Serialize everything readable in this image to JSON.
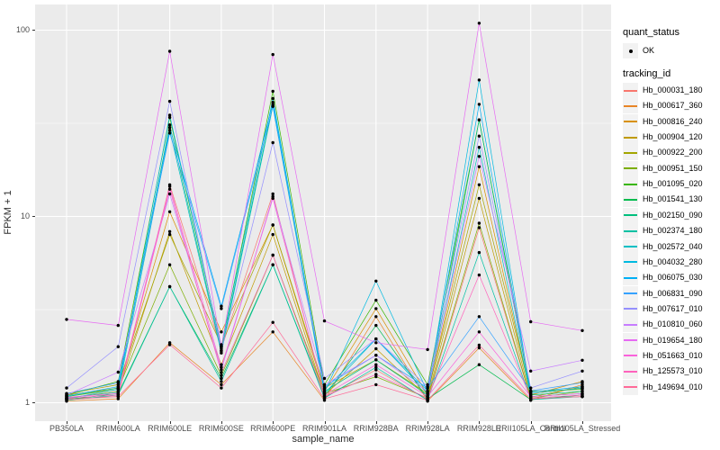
{
  "chart_data": {
    "type": "line",
    "title": "",
    "xlabel": "sample_name",
    "ylabel": "FPKM + 1",
    "y_scale": "log10",
    "y_tick_labels": [
      "1",
      "10",
      "100"
    ],
    "y_tick_values": [
      1,
      10,
      100
    ],
    "y_minor_gridlines": [
      3.1623,
      31.623
    ],
    "ylim": [
      0.8,
      137
    ],
    "grid": true,
    "legend_position": "right",
    "panel_bg": "#EBEBEB",
    "gridline_color": "#FFFFFF",
    "point_color": "#000000",
    "categories": [
      "PB350LA",
      "RRIM600LA",
      "RRIM600LE",
      "RRIM600SE",
      "RRIM600PE",
      "RRIM901LA",
      "RRIM928BA",
      "RRIM928LA",
      "RRIM928LE",
      "RRII105LA_Control",
      "RRII105LA_Stressed"
    ],
    "quant_status_legend": {
      "title": "quant_status",
      "items": [
        {
          "label": "OK",
          "marker": "point",
          "color": "#000000"
        }
      ]
    },
    "tracking_id_legend_title": "tracking_id",
    "series": [
      {
        "name": "Hb_000031_180",
        "color": "#F8766D",
        "values": [
          1.05,
          1.08,
          14.8,
          1.95,
          13.2,
          1.08,
          1.5,
          1.04,
          8.7,
          1.05,
          1.08
        ]
      },
      {
        "name": "Hb_000617_360",
        "color": "#E88526",
        "values": [
          1.02,
          1.05,
          2.1,
          1.25,
          2.4,
          1.03,
          2.9,
          1.02,
          1.97,
          1.03,
          1.25
        ]
      },
      {
        "name": "Hb_000816_240",
        "color": "#D89000",
        "values": [
          1.1,
          1.2,
          10.6,
          2.4,
          9.0,
          1.15,
          3.2,
          1.1,
          18.5,
          1.1,
          1.3
        ]
      },
      {
        "name": "Hb_000904_120",
        "color": "#C09B00",
        "values": [
          1.06,
          1.15,
          8.3,
          1.6,
          8.0,
          1.1,
          1.95,
          1.07,
          12.5,
          1.07,
          1.22
        ]
      },
      {
        "name": "Hb_000922_200",
        "color": "#A3A500",
        "values": [
          1.12,
          1.25,
          8.0,
          2.05,
          9.0,
          1.2,
          1.7,
          1.12,
          14.8,
          1.12,
          1.2
        ]
      },
      {
        "name": "Hb_000951_150",
        "color": "#7CAE00",
        "values": [
          1.08,
          1.18,
          5.5,
          1.4,
          6.2,
          1.12,
          1.38,
          1.06,
          9.2,
          1.06,
          1.15
        ]
      },
      {
        "name": "Hb_001095_020",
        "color": "#39B600",
        "values": [
          1.1,
          1.3,
          34,
          2.0,
          47,
          1.25,
          3.55,
          1.25,
          33,
          1.15,
          1.18
        ]
      },
      {
        "name": "Hb_001541_130",
        "color": "#00BB4E",
        "values": [
          1.04,
          1.12,
          4.2,
          1.35,
          5.5,
          1.08,
          2.6,
          1.05,
          1.6,
          1.04,
          1.1
        ]
      },
      {
        "name": "Hb_002150_090",
        "color": "#00BF7D",
        "values": [
          1.08,
          1.2,
          31,
          1.9,
          40,
          1.15,
          1.7,
          1.1,
          33,
          1.1,
          1.15
        ]
      },
      {
        "name": "Hb_002374_180",
        "color": "#00C1A3",
        "values": [
          1.03,
          1.1,
          4.2,
          1.3,
          5.5,
          1.06,
          1.55,
          1.03,
          6.4,
          1.04,
          1.08
        ]
      },
      {
        "name": "Hb_002572_040",
        "color": "#00BFC4",
        "values": [
          1.06,
          1.14,
          29,
          1.85,
          39,
          1.12,
          2.2,
          1.12,
          23.5,
          1.08,
          1.12
        ]
      },
      {
        "name": "Hb_004032_280",
        "color": "#00BAE0",
        "values": [
          1.05,
          1.18,
          35,
          2.0,
          43,
          1.14,
          4.5,
          1.14,
          54,
          1.12,
          1.2
        ]
      },
      {
        "name": "Hb_006075_030",
        "color": "#00B0F6",
        "values": [
          1.09,
          1.22,
          30,
          3.3,
          41,
          1.18,
          2.2,
          1.16,
          40,
          1.14,
          1.22
        ]
      },
      {
        "name": "Hb_006831_090",
        "color": "#35A2FF",
        "values": [
          1.12,
          1.28,
          28,
          3.2,
          39,
          1.22,
          1.8,
          1.2,
          2.9,
          1.16,
          1.28
        ]
      },
      {
        "name": "Hb_007617_010",
        "color": "#9590FF",
        "values": [
          1.2,
          2.0,
          41.5,
          1.9,
          24.9,
          1.35,
          2.2,
          1.22,
          27,
          1.2,
          1.48
        ]
      },
      {
        "name": "Hb_010810_060",
        "color": "#C77CFF",
        "values": [
          1.1,
          1.46,
          13.2,
          1.5,
          12.8,
          1.25,
          1.8,
          1.15,
          21,
          1.48,
          1.69
        ]
      },
      {
        "name": "Hb_019654_180",
        "color": "#E76BF3",
        "values": [
          2.8,
          2.6,
          77,
          2.0,
          74,
          2.75,
          2.1,
          1.93,
          109,
          2.72,
          2.44
        ]
      },
      {
        "name": "Hb_051663_010",
        "color": "#FA62DB",
        "values": [
          1.07,
          1.12,
          14.5,
          1.55,
          12.5,
          1.1,
          1.6,
          1.08,
          2.4,
          1.08,
          1.12
        ]
      },
      {
        "name": "Hb_125573_010",
        "color": "#FF62BC",
        "values": [
          1.06,
          1.1,
          14.0,
          1.45,
          6.2,
          1.08,
          1.42,
          1.06,
          4.85,
          1.06,
          1.1
        ]
      },
      {
        "name": "Hb_149694_010",
        "color": "#FF6A98",
        "values": [
          1.04,
          1.08,
          2.05,
          1.2,
          2.7,
          1.05,
          1.25,
          1.03,
          2.04,
          1.05,
          1.08
        ]
      }
    ]
  }
}
